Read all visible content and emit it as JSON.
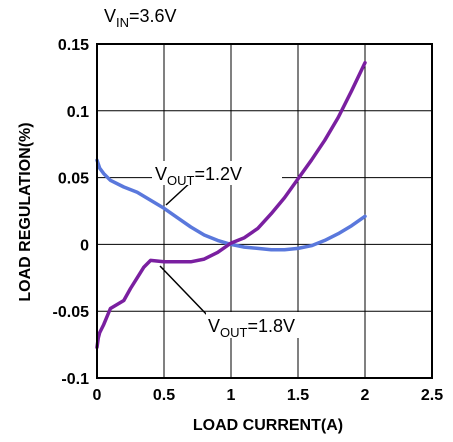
{
  "chart_data": {
    "type": "line",
    "title": "",
    "xlabel": "LOAD CURRENT(A)",
    "ylabel": "LOAD REGULATION(%)",
    "xlim": [
      0,
      2.5
    ],
    "ylim": [
      -0.1,
      0.15
    ],
    "x_ticks": [
      "0",
      "0.5",
      "1",
      "1.5",
      "2",
      "2.5"
    ],
    "y_ticks": [
      "0.15",
      "0.1",
      "0.05",
      "0",
      "-0.05",
      "-0.1"
    ],
    "grid": true,
    "annotations": [
      {
        "id": "vin",
        "main": "V",
        "sub": "IN",
        "rest": "=3.6V"
      },
      {
        "id": "vout12",
        "main": "V",
        "sub": "OUT",
        "rest": "=1.2V"
      },
      {
        "id": "vout18",
        "main": "V",
        "sub": "OUT",
        "rest": "=1.8V"
      }
    ],
    "series": [
      {
        "color": "#5a78dc",
        "x": [
          0,
          0.02,
          0.05,
          0.1,
          0.2,
          0.3,
          0.4,
          0.5,
          0.6,
          0.7,
          0.8,
          0.9,
          1.0,
          1.1,
          1.2,
          1.3,
          1.4,
          1.5,
          1.6,
          1.7,
          1.8,
          1.9,
          2.0
        ],
        "y": [
          0.063,
          0.057,
          0.053,
          0.048,
          0.043,
          0.039,
          0.033,
          0.027,
          0.02,
          0.013,
          0.007,
          0.003,
          0.0,
          -0.002,
          -0.003,
          -0.004,
          -0.004,
          -0.003,
          -0.001,
          0.003,
          0.008,
          0.014,
          0.021
        ]
      },
      {
        "color": "#7a1fa0",
        "x": [
          0,
          0.01,
          0.02,
          0.05,
          0.1,
          0.15,
          0.2,
          0.25,
          0.3,
          0.35,
          0.4,
          0.5,
          0.6,
          0.7,
          0.8,
          0.9,
          1.0,
          1.1,
          1.2,
          1.3,
          1.4,
          1.5,
          1.6,
          1.7,
          1.8,
          1.9,
          2.0
        ],
        "y": [
          -0.077,
          -0.07,
          -0.066,
          -0.06,
          -0.048,
          -0.045,
          -0.042,
          -0.033,
          -0.025,
          -0.017,
          -0.012,
          -0.013,
          -0.013,
          -0.013,
          -0.011,
          -0.006,
          0.001,
          0.005,
          0.012,
          0.023,
          0.035,
          0.049,
          0.063,
          0.078,
          0.095,
          0.115,
          0.136
        ]
      }
    ]
  }
}
